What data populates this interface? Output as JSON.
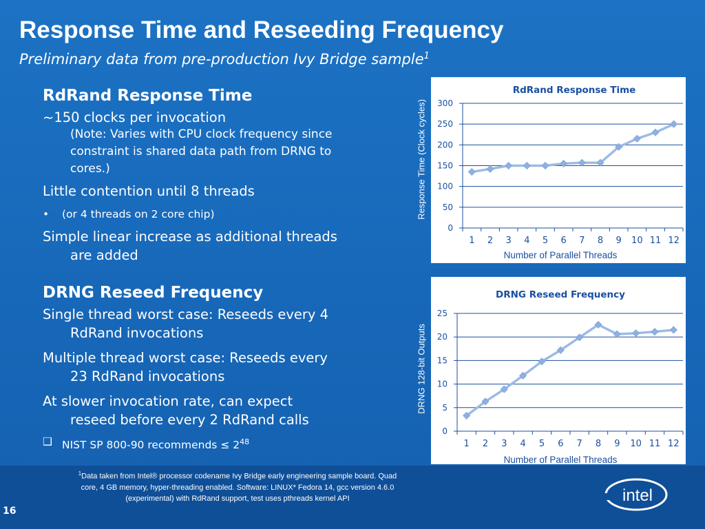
{
  "slide": {
    "title": "Response Time and Reseeding Frequency",
    "subtitle": "Preliminary data from pre-production Ivy Bridge sample",
    "subtitle_sup": "1",
    "page_number": "16",
    "logo_text": "intel"
  },
  "left": {
    "s1_heading": "RdRand Response Time",
    "s1_line1": "~150 clocks per invocation",
    "s1_note1": "(Note: Varies with CPU clock frequency since",
    "s1_note2": "constraint is shared data path from DRNG to",
    "s1_note3": "cores.)",
    "s1_line2": "Little contention until 8 threads",
    "s1_bullet_mark": "•",
    "s1_bullet": "(or 4 threads on 2 core chip)",
    "s1_line3a": "Simple linear increase as additional threads",
    "s1_line3b": "are added",
    "s2_heading": "DRNG Reseed Frequency",
    "s2_line1a": "Single thread worst case: Reseeds every 4",
    "s2_line1b": "RdRand invocations",
    "s2_line2a": "Multiple thread worst case: Reseeds every",
    "s2_line2b": "23 RdRand invocations",
    "s2_line3a": "At slower invocation rate, can expect",
    "s2_line3b": "reseed before every 2 RdRand calls",
    "s2_nist_mark": "❑",
    "s2_nist": "NIST SP 800-90 recommends ≤ 2",
    "s2_nist_sup": "48"
  },
  "footnote": {
    "sup": "1",
    "line1": "Data taken from Intel® processor codename Ivy Bridge early engineering sample board.  Quad",
    "line2": "core,  4 GB memory, hyper-threading enabled.  Software:  LINUX* Fedora 14, gcc version 4.6.0",
    "line3": "(experimental) with RdRand support, test uses pthreads kernel API"
  },
  "colors": {
    "background": "#1a6bbd",
    "series": "#9cbbe4",
    "series_marker": "#8fb1e0",
    "chart_title": "#1a4fa0",
    "axis_text": "#1a4fa0"
  },
  "chart_data": [
    {
      "type": "line",
      "title": "RdRand Response Time",
      "xlabel": "Number of Parallel Threads",
      "ylabel": "Response Time (Clock cycles)",
      "x": [
        1,
        2,
        3,
        4,
        5,
        6,
        7,
        8,
        9,
        10,
        11,
        12
      ],
      "series": [
        {
          "values": [
            135,
            142,
            150,
            150,
            150,
            155,
            157,
            157,
            195,
            215,
            230,
            250
          ]
        }
      ],
      "ylim": [
        0,
        300
      ],
      "yticks": [
        0,
        50,
        100,
        150,
        200,
        250,
        300
      ],
      "grid": true,
      "legend": "none"
    },
    {
      "type": "line",
      "title": "DRNG Reseed Frequency",
      "xlabel": "Number of Parallel Threads",
      "ylabel": "DRNG 128-bit Outputs",
      "x": [
        1,
        2,
        3,
        4,
        5,
        6,
        7,
        8,
        9,
        10,
        11,
        12
      ],
      "series": [
        {
          "values": [
            3.3,
            6.3,
            8.9,
            11.8,
            14.8,
            17.2,
            19.9,
            22.6,
            20.6,
            20.8,
            21.1,
            21.5
          ]
        }
      ],
      "ylim": [
        0,
        25
      ],
      "yticks": [
        0,
        5,
        10,
        15,
        20,
        25
      ],
      "grid": true,
      "legend": "none"
    }
  ]
}
